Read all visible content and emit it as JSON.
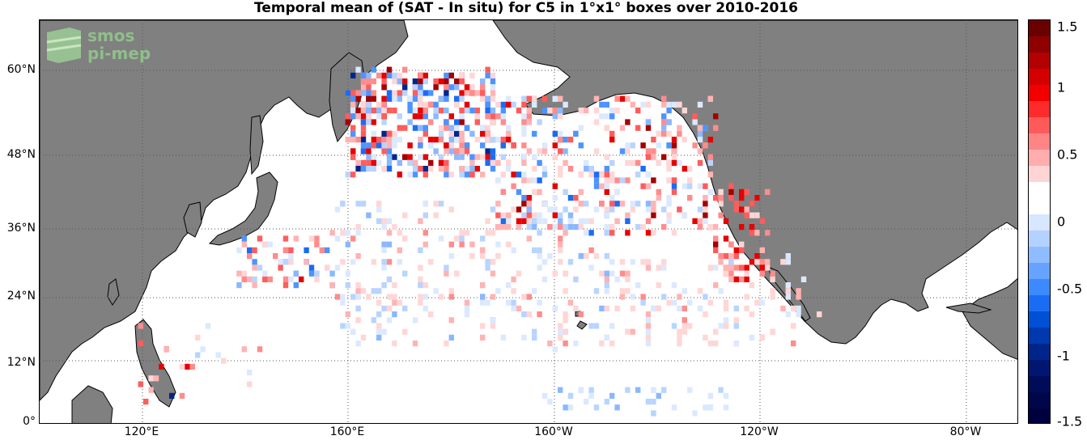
{
  "title": "Temporal mean of (SAT - In situ) for C5 in 1°x1° boxes over 2010-2016",
  "logo": {
    "line1": "smos",
    "line2": "pi-mep"
  },
  "lat_labels": [
    "60°N",
    "48°N",
    "36°N",
    "24°N",
    "12°N",
    "0°"
  ],
  "lon_labels": [
    "120°E",
    "160°E",
    "160°W",
    "120°W",
    "80°W"
  ],
  "colorbar": {
    "ticks": [
      "1.5",
      "1",
      "0.5",
      "0",
      "-0.5",
      "-1",
      "-1.5"
    ],
    "range": [
      -1.5,
      1.5
    ],
    "colors_top_to_bottom": [
      "#6b0000",
      "#8f0000",
      "#b30000",
      "#d40000",
      "#f20000",
      "#ff2a2a",
      "#ff5a5a",
      "#ff8585",
      "#ffadad",
      "#ffd4d4",
      "#ffffff",
      "#ffffff",
      "#d6e7ff",
      "#b3d2ff",
      "#8fbcff",
      "#66a3ff",
      "#3d8aff",
      "#1a6cf5",
      "#0050d6",
      "#0038b0",
      "#00258a",
      "#001670",
      "#000c5a",
      "#00064a",
      "#000040"
    ]
  },
  "colors": {
    "land": "#808080",
    "ocean": "#ffffff",
    "grid": "#555555"
  }
}
